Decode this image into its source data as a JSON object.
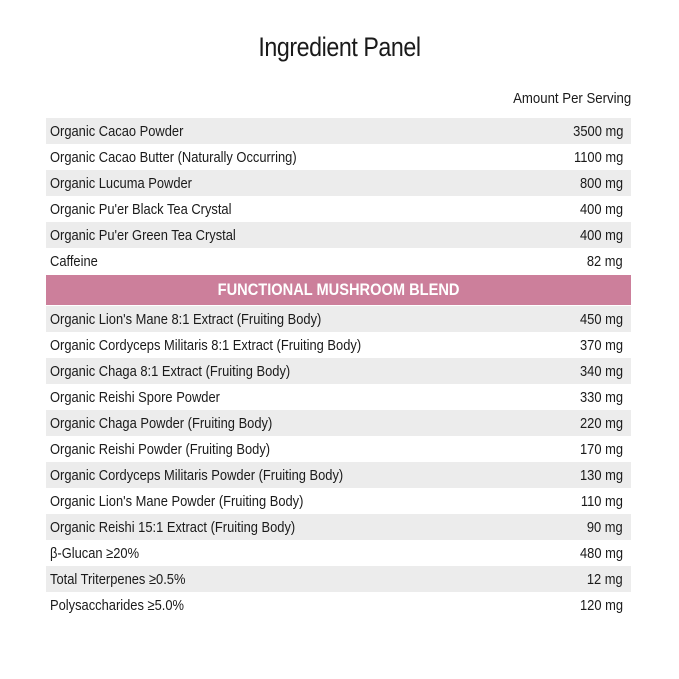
{
  "title": "Ingredient Panel",
  "amount_header": "Amount Per Serving",
  "base_ingredients": [
    {
      "name": "Organic Cacao Powder",
      "amount": "3500 mg"
    },
    {
      "name": "Organic Cacao Butter (Naturally Occurring)",
      "amount": "1100 mg"
    },
    {
      "name": "Organic Lucuma Powder",
      "amount": "800 mg"
    },
    {
      "name": "Organic Pu'er Black Tea Crystal",
      "amount": "400 mg"
    },
    {
      "name": "Organic Pu'er Green Tea Crystal",
      "amount": "400 mg"
    },
    {
      "name": "Caffeine",
      "amount": "82 mg"
    }
  ],
  "blend_title": "FUNCTIONAL MUSHROOM BLEND",
  "blend_ingredients": [
    {
      "name": "Organic Lion's Mane 8:1 Extract (Fruiting Body)",
      "amount": "450 mg"
    },
    {
      "name": "Organic Cordyceps Militaris 8:1 Extract (Fruiting Body)",
      "amount": "370 mg"
    },
    {
      "name": "Organic Chaga 8:1 Extract (Fruiting Body)",
      "amount": "340 mg"
    },
    {
      "name": "Organic Reishi  Spore Powder",
      "amount": "330 mg"
    },
    {
      "name": "Organic Chaga Powder (Fruiting Body)",
      "amount": "220 mg"
    },
    {
      "name": "Organic Reishi Powder (Fruiting Body)",
      "amount": "170 mg"
    },
    {
      "name": "Organic Cordyceps Militaris Powder (Fruiting Body)",
      "amount": "130 mg"
    },
    {
      "name": "Organic Lion's Mane Powder (Fruiting Body)",
      "amount": "110 mg"
    },
    {
      "name": "Organic Reishi 15:1 Extract (Fruiting Body)",
      "amount": "90 mg"
    },
    {
      "name": "β-Glucan ≥20%",
      "amount": "480 mg"
    },
    {
      "name": "Total Triterpenes ≥0.5%",
      "amount": "12 mg"
    },
    {
      "name": "Polysaccharides ≥5.0%",
      "amount": "120 mg"
    }
  ],
  "colors": {
    "blend_band": "#cc7f9b",
    "row_stripe": "#ececec"
  }
}
